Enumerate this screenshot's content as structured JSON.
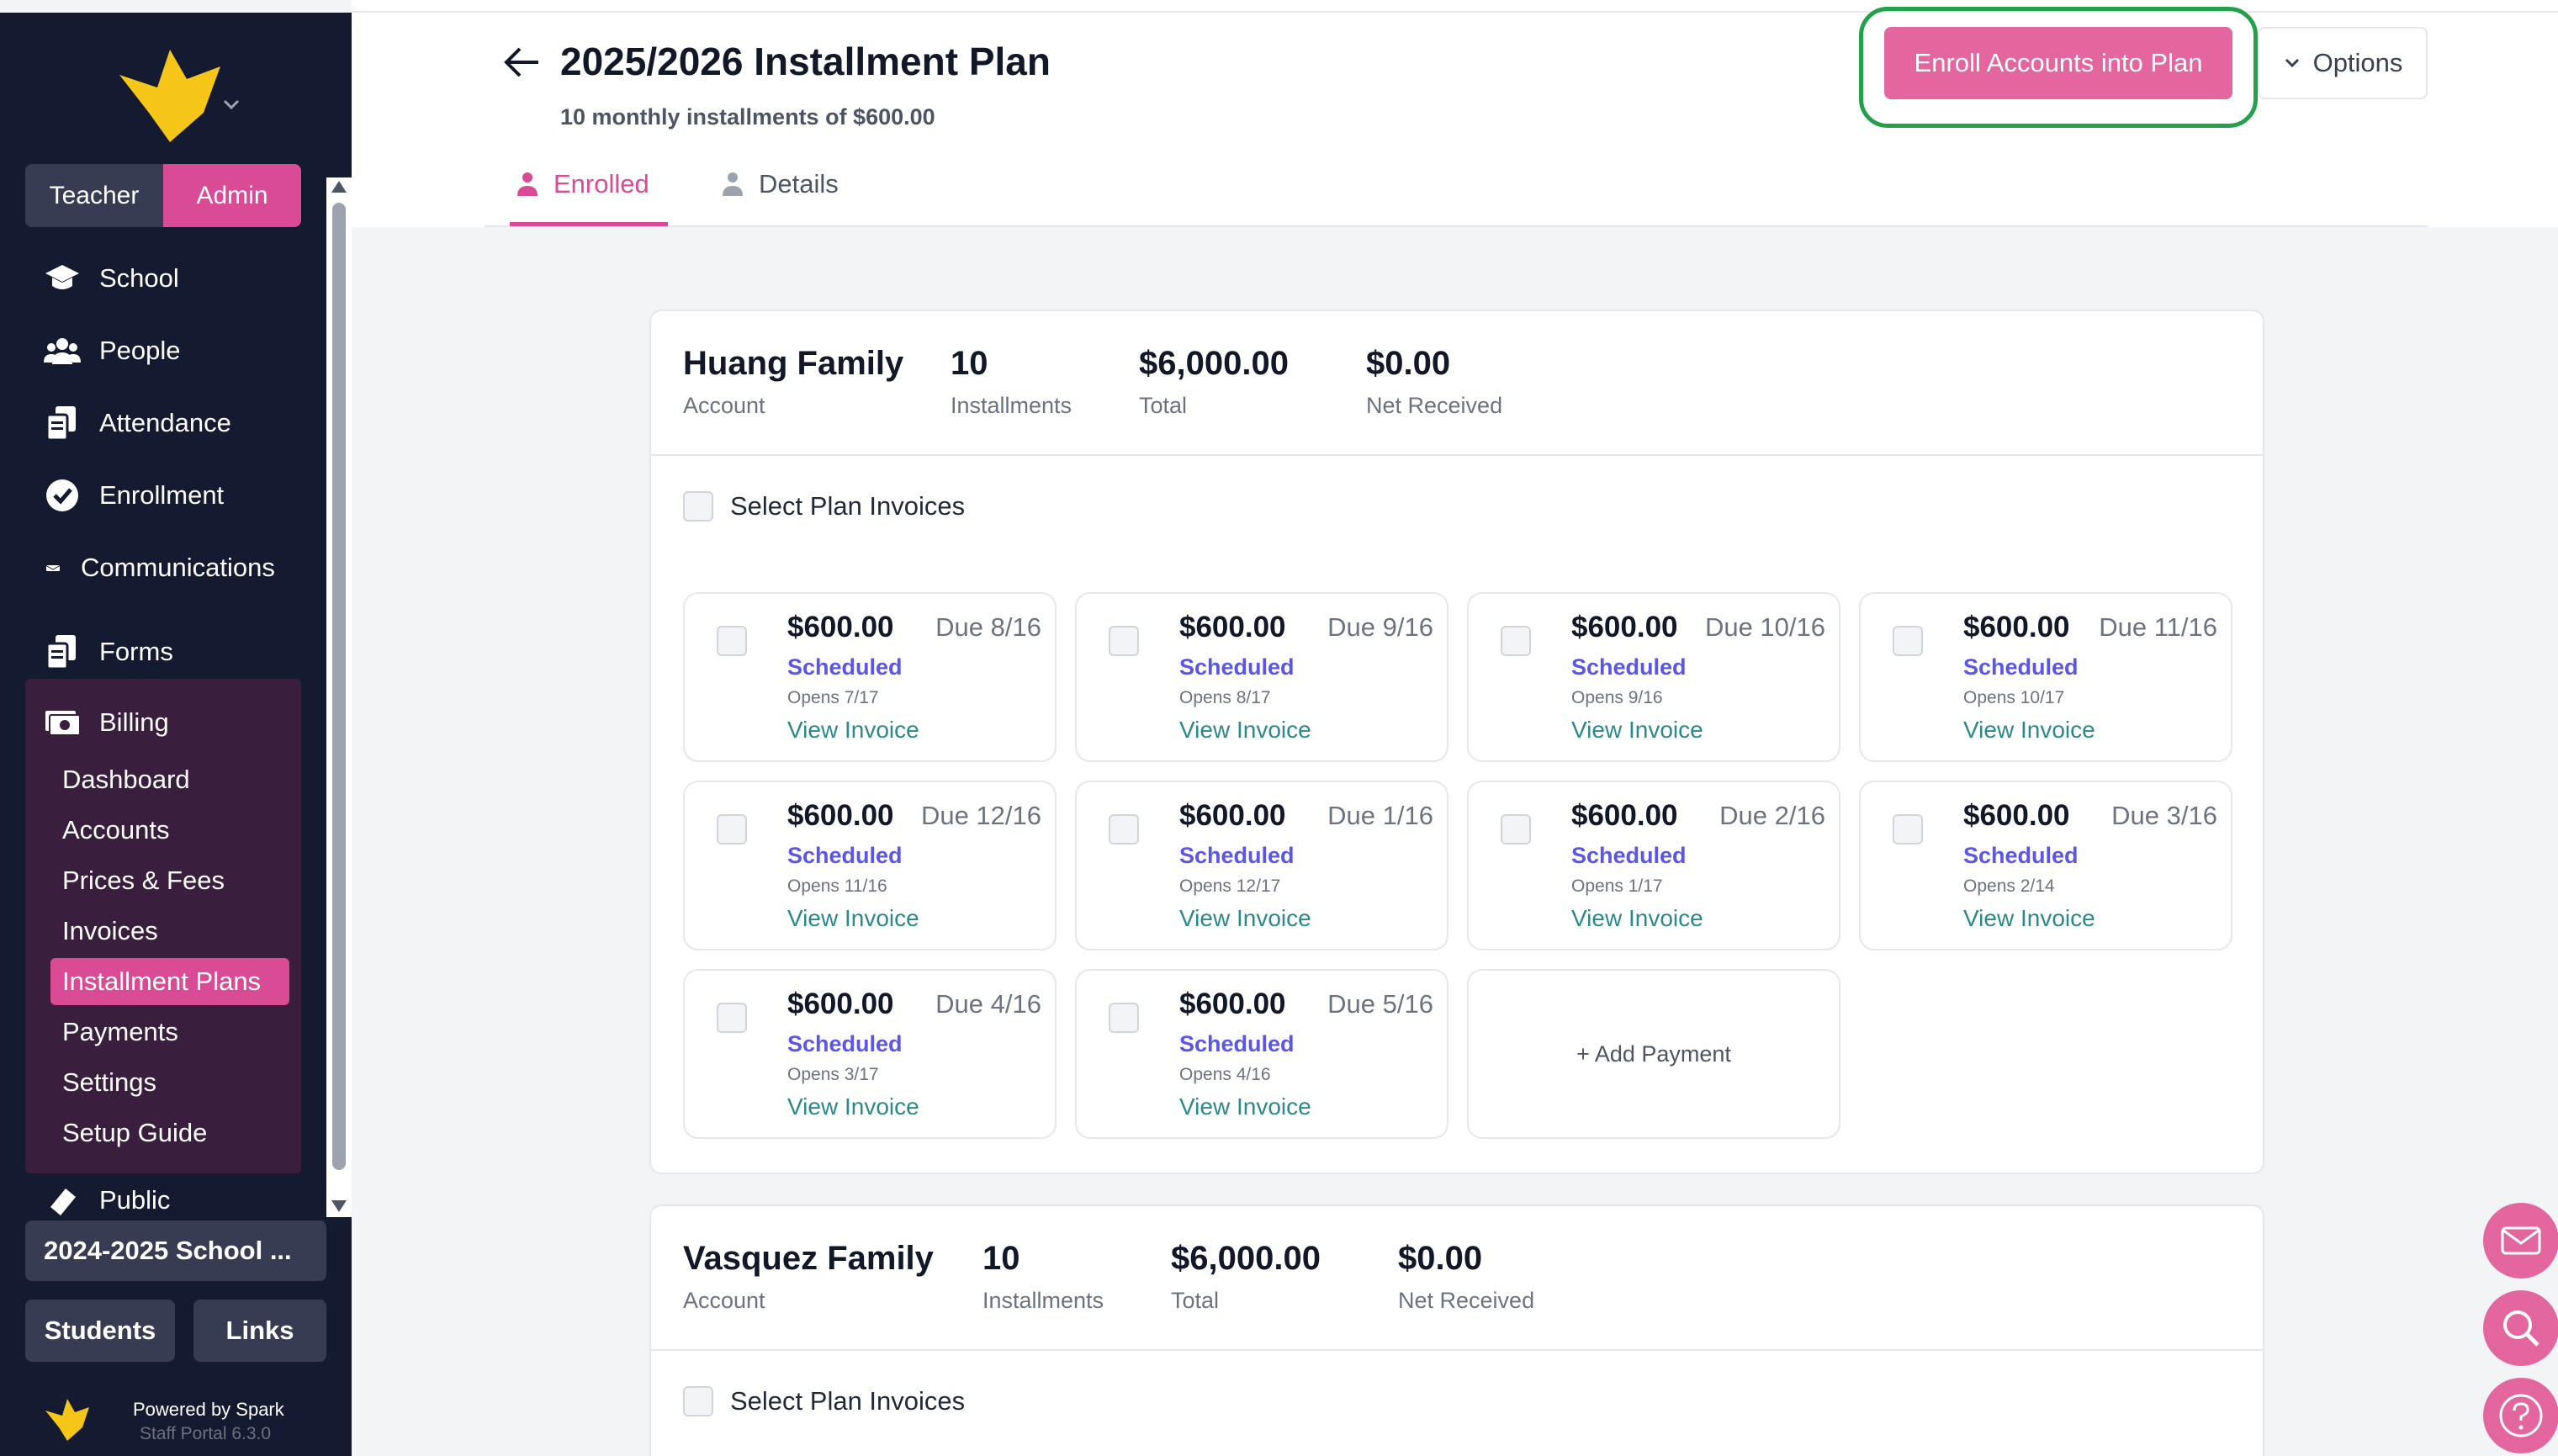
{
  "sidebar": {
    "roles": {
      "teacher": "Teacher",
      "admin": "Admin"
    },
    "nav": [
      {
        "label": "School",
        "icon": "graduation-cap-icon"
      },
      {
        "label": "People",
        "icon": "people-icon"
      },
      {
        "label": "Attendance",
        "icon": "attendance-icon"
      },
      {
        "label": "Enrollment",
        "icon": "check-badge-icon"
      },
      {
        "label": "Communications",
        "icon": "envelope-icon"
      },
      {
        "label": "Forms",
        "icon": "forms-icon"
      },
      {
        "label": "Billing",
        "icon": "money-icon"
      }
    ],
    "billing_sub": [
      "Dashboard",
      "Accounts",
      "Prices & Fees",
      "Invoices",
      "Installment Plans",
      "Payments",
      "Settings",
      "Setup Guide"
    ],
    "active_sub": "Installment Plans",
    "public_label": "Public",
    "school_year": "2024-2025 School ...",
    "students_btn": "Students",
    "links_btn": "Links",
    "powered_by": "Powered by Spark",
    "version": "Staff Portal 6.3.0",
    "accent": "#d94b94"
  },
  "header": {
    "title": "2025/2026 Installment Plan",
    "subtitle": "10 monthly installments of $600.00",
    "enroll_btn": "Enroll Accounts into Plan",
    "options_btn": "Options",
    "tabs": [
      {
        "label": "Enrolled",
        "icon": "person-icon",
        "active": true
      },
      {
        "label": "Details",
        "icon": "person-icon",
        "active": false
      }
    ]
  },
  "accounts": [
    {
      "name": "Huang Family",
      "name_label": "Account",
      "installments": "10",
      "installments_label": "Installments",
      "total": "$6,000.00",
      "total_label": "Total",
      "net_received": "$0.00",
      "net_received_label": "Net Received",
      "select_label": "Select Plan Invoices",
      "invoices": [
        {
          "amount": "$600.00",
          "due": "Due 8/16",
          "status": "Scheduled",
          "opens": "Opens 7/17",
          "link": "View Invoice"
        },
        {
          "amount": "$600.00",
          "due": "Due 9/16",
          "status": "Scheduled",
          "opens": "Opens 8/17",
          "link": "View Invoice"
        },
        {
          "amount": "$600.00",
          "due": "Due 10/16",
          "status": "Scheduled",
          "opens": "Opens 9/16",
          "link": "View Invoice"
        },
        {
          "amount": "$600.00",
          "due": "Due 11/16",
          "status": "Scheduled",
          "opens": "Opens 10/17",
          "link": "View Invoice"
        },
        {
          "amount": "$600.00",
          "due": "Due 12/16",
          "status": "Scheduled",
          "opens": "Opens 11/16",
          "link": "View Invoice"
        },
        {
          "amount": "$600.00",
          "due": "Due 1/16",
          "status": "Scheduled",
          "opens": "Opens 12/17",
          "link": "View Invoice"
        },
        {
          "amount": "$600.00",
          "due": "Due 2/16",
          "status": "Scheduled",
          "opens": "Opens 1/17",
          "link": "View Invoice"
        },
        {
          "amount": "$600.00",
          "due": "Due 3/16",
          "status": "Scheduled",
          "opens": "Opens 2/14",
          "link": "View Invoice"
        },
        {
          "amount": "$600.00",
          "due": "Due 4/16",
          "status": "Scheduled",
          "opens": "Opens 3/17",
          "link": "View Invoice"
        },
        {
          "amount": "$600.00",
          "due": "Due 5/16",
          "status": "Scheduled",
          "opens": "Opens 4/16",
          "link": "View Invoice"
        }
      ],
      "add_payment": "+ Add Payment"
    },
    {
      "name": "Vasquez Family",
      "name_label": "Account",
      "installments": "10",
      "installments_label": "Installments",
      "total": "$6,000.00",
      "total_label": "Total",
      "net_received": "$0.00",
      "net_received_label": "Net Received",
      "select_label": "Select Plan Invoices"
    }
  ],
  "floating": [
    "mail-icon",
    "search-icon",
    "help-icon"
  ],
  "colors": {
    "brand_pink": "#d94b94",
    "button_pink": "#e3669f",
    "status_scheduled": "#5b56e8",
    "link_teal": "#2a8a8a",
    "sidebar_bg": "#141a30",
    "highlight_green": "#22a04a"
  }
}
